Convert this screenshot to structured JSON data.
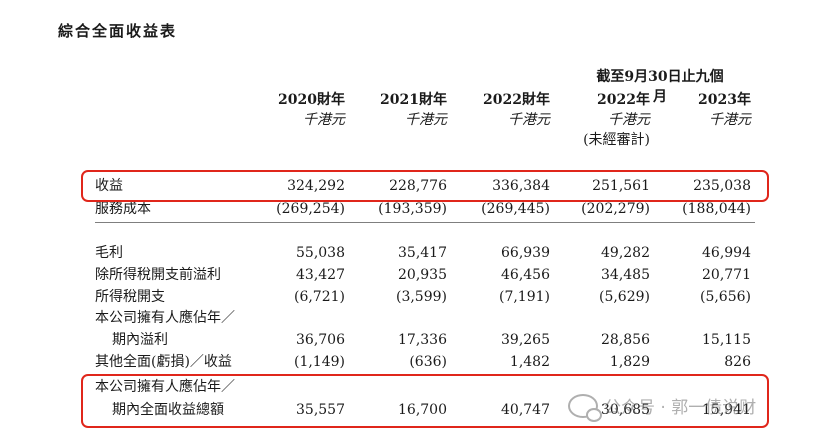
{
  "title": "綜合全面收益表",
  "period_header": "截至9月30日止九個月",
  "columns": [
    {
      "year": "2020財年",
      "unit": "千港元",
      "note": ""
    },
    {
      "year": "2021財年",
      "unit": "千港元",
      "note": ""
    },
    {
      "year": "2022財年",
      "unit": "千港元",
      "note": ""
    },
    {
      "year": "2022年",
      "unit": "千港元",
      "note": "(未經審計)"
    },
    {
      "year": "2023年",
      "unit": "千港元",
      "note": ""
    }
  ],
  "rows": [
    {
      "label": "收益",
      "values": [
        "324,292",
        "228,776",
        "336,384",
        "251,561",
        "235,038"
      ]
    },
    {
      "label": "服務成本",
      "values": [
        "(269,254)",
        "(193,359)",
        "(269,445)",
        "(202,279)",
        "(188,044)"
      ]
    },
    {
      "label": "毛利",
      "values": [
        "55,038",
        "35,417",
        "66,939",
        "49,282",
        "46,994"
      ]
    },
    {
      "label": "除所得稅開支前溢利",
      "values": [
        "43,427",
        "20,935",
        "46,456",
        "34,485",
        "20,771"
      ]
    },
    {
      "label": "所得稅開支",
      "values": [
        "(6,721)",
        "(3,599)",
        "(7,191)",
        "(5,629)",
        "(5,656)"
      ]
    },
    {
      "label": "本公司擁有人應佔年／",
      "values": [
        "",
        "",
        "",
        "",
        ""
      ]
    },
    {
      "label": "期內溢利",
      "values": [
        "36,706",
        "17,336",
        "39,265",
        "28,856",
        "15,115"
      ]
    },
    {
      "label": "其他全面(虧損)／收益",
      "values": [
        "(1,149)",
        "(636)",
        "1,482",
        "1,829",
        "826"
      ]
    },
    {
      "label": "本公司擁有人應佔年／",
      "values": [
        "",
        "",
        "",
        "",
        ""
      ]
    },
    {
      "label": "期內全面收益總額",
      "values": [
        "35,557",
        "16,700",
        "40,747",
        "30,685",
        "15,941"
      ]
    }
  ],
  "watermark": "公众号 · 郭一债说财",
  "colors": {
    "highlight": "#e0261b",
    "text": "#1a1a1a"
  }
}
